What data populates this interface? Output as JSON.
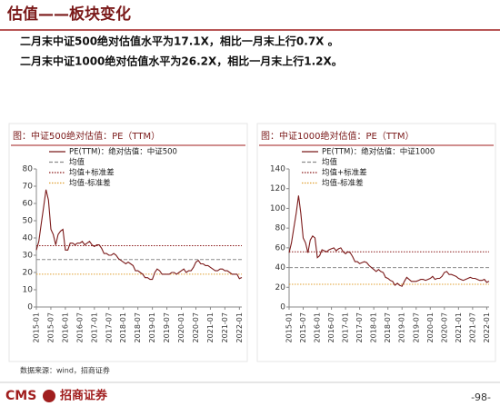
{
  "header": {
    "title": "估值——板块变化"
  },
  "bullets": [
    "二月末中证500绝对估值水平为17.1X，相比一月末上行0.7X 。",
    "二月末中证1000绝对估值水平为26.2X，相比一月末上行1.2X。"
  ],
  "source": "数据来源：wind，招商证券",
  "footer": {
    "logo": "CMS",
    "company": "招商证券",
    "page": "-98-"
  },
  "chart_data": [
    {
      "type": "line",
      "title": "图：中证500绝对估值：PE（TTM）",
      "categories": [
        "2015-01",
        null,
        null,
        null,
        null,
        null,
        "2015-07",
        null,
        null,
        null,
        null,
        null,
        "2016-01",
        null,
        null,
        null,
        null,
        null,
        "2016-07",
        null,
        null,
        null,
        null,
        null,
        "2017-01",
        null,
        null,
        null,
        null,
        null,
        "2017-07",
        null,
        null,
        null,
        null,
        null,
        "2018-01",
        null,
        null,
        null,
        null,
        null,
        "2018-07",
        null,
        null,
        null,
        null,
        null,
        "2019-01",
        null,
        null,
        null,
        null,
        null,
        "2019-07",
        null,
        null,
        null,
        null,
        null,
        "2020-01",
        null,
        null,
        null,
        null,
        null,
        "2020-07",
        null,
        null,
        null,
        null,
        null,
        "2021-01",
        null,
        null,
        null,
        null,
        null,
        "2021-07",
        null,
        null,
        null,
        null,
        null,
        "2022-01",
        null
      ],
      "series": [
        {
          "name": "PE(TTM)：绝对估值：中证500",
          "color": "#7b1a1a",
          "values": [
            33,
            38,
            48,
            58,
            68,
            62,
            45,
            42,
            36,
            42,
            44,
            45,
            33,
            33,
            37,
            37,
            36,
            37,
            37,
            38,
            36,
            37,
            38,
            36,
            35,
            36,
            36,
            34,
            31,
            31,
            30,
            30,
            31,
            30,
            28,
            27,
            26,
            25,
            26,
            25,
            24,
            21,
            21,
            20,
            19,
            17,
            17,
            16,
            16,
            20,
            22,
            21,
            19,
            19,
            19,
            19,
            20,
            20,
            19,
            20,
            21,
            22,
            20,
            21,
            21,
            23,
            26,
            27,
            25,
            25,
            24,
            24,
            23,
            22,
            21,
            21,
            22,
            22,
            21,
            21,
            20,
            19,
            19,
            19,
            16.4,
            17.1
          ]
        }
      ],
      "reference_lines": [
        {
          "name": "均值",
          "color": "#8c8c8c",
          "style": "dashed",
          "value": 27.5
        },
        {
          "name": "均值+标准差",
          "color": "#8b1a1a",
          "style": "dotted",
          "value": 35.5
        },
        {
          "name": "均值-标准差",
          "color": "#e0a030",
          "style": "dotted",
          "value": 19
        }
      ],
      "ylim": [
        0,
        80
      ],
      "yticks": [
        0,
        10,
        20,
        30,
        40,
        50,
        60,
        70,
        80
      ]
    },
    {
      "type": "line",
      "title": "图：中证1000绝对估值：PE（TTM）",
      "categories": [
        "2015-01",
        null,
        null,
        null,
        null,
        null,
        "2015-07",
        null,
        null,
        null,
        null,
        null,
        "2016-01",
        null,
        null,
        null,
        null,
        null,
        "2016-07",
        null,
        null,
        null,
        null,
        null,
        "2017-01",
        null,
        null,
        null,
        null,
        null,
        "2017-07",
        null,
        null,
        null,
        null,
        null,
        "2018-01",
        null,
        null,
        null,
        null,
        null,
        "2018-07",
        null,
        null,
        null,
        null,
        null,
        "2019-01",
        null,
        null,
        null,
        null,
        null,
        "2019-07",
        null,
        null,
        null,
        null,
        null,
        "2020-01",
        null,
        null,
        null,
        null,
        null,
        "2020-07",
        null,
        null,
        null,
        null,
        null,
        "2021-01",
        null,
        null,
        null,
        null,
        null,
        "2021-07",
        null,
        null,
        null,
        null,
        null,
        "2022-01",
        null
      ],
      "series": [
        {
          "name": "PE(TTM)：绝对估值：中证1000",
          "color": "#7b1a1a",
          "values": [
            55,
            65,
            80,
            95,
            113,
            95,
            70,
            65,
            55,
            68,
            72,
            70,
            50,
            52,
            58,
            57,
            56,
            58,
            59,
            60,
            57,
            59,
            60,
            56,
            54,
            56,
            55,
            51,
            46,
            46,
            44,
            45,
            46,
            45,
            42,
            40,
            38,
            36,
            38,
            36,
            35,
            30,
            29,
            27,
            26,
            22,
            24,
            22,
            21,
            26,
            30,
            28,
            26,
            26,
            26,
            27,
            28,
            28,
            27,
            28,
            29,
            31,
            28,
            29,
            29,
            31,
            35,
            36,
            33,
            33,
            32,
            31,
            29,
            28,
            27,
            28,
            29,
            30,
            29,
            29,
            28,
            27,
            27,
            28,
            25,
            26.2
          ]
        }
      ],
      "reference_lines": [
        {
          "name": "均值",
          "color": "#8c8c8c",
          "style": "dashed",
          "value": 40
        },
        {
          "name": "均值+标准差",
          "color": "#8b1a1a",
          "style": "dotted",
          "value": 56
        },
        {
          "name": "均值-标准差",
          "color": "#e0a030",
          "style": "dotted",
          "value": 23
        }
      ],
      "ylim": [
        0,
        140
      ],
      "yticks": [
        0,
        20,
        40,
        60,
        80,
        100,
        120,
        140
      ]
    }
  ]
}
